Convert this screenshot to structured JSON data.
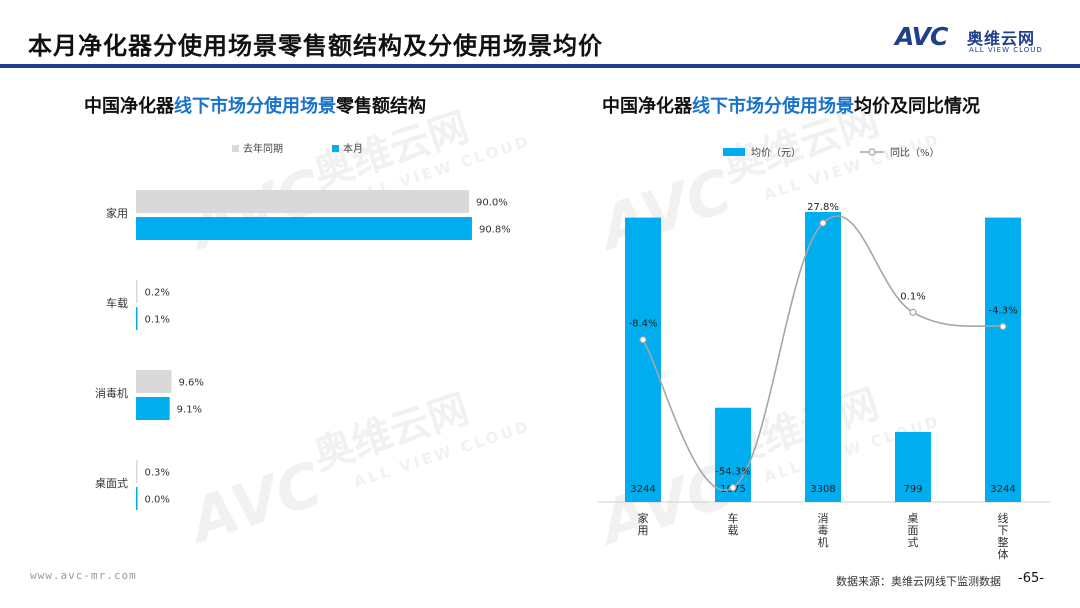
{
  "header": {
    "title": "本月净化器分使用场景零售额结构及分使用场景均价",
    "logo_mark": "AVC",
    "logo_cn": "奥维云网",
    "logo_en": "ALL VIEW CLOUD"
  },
  "left_subtitle": {
    "part1": "中国净化器",
    "highlight": "线下市场分使用场景",
    "part2": "零售额结构"
  },
  "right_subtitle": {
    "part1": "中国净化器",
    "highlight": "线下市场分使用场景",
    "part2": "均价及同比情况"
  },
  "footer": {
    "url": "www.avc-mr.com",
    "source": "数据来源：奥维云网线下监测数据",
    "page": "-65-"
  },
  "watermark": {
    "mark": "AVC",
    "cn": "奥维云网",
    "en": "ALL VIEW CLOUD"
  },
  "colors": {
    "navy": "#1e3f8c",
    "blue_bar": "#00aeef",
    "grey_bar": "#d9d9d9",
    "line": "#a6a6a6",
    "highlight": "#1a73c8"
  },
  "chart_data": [
    {
      "type": "bar",
      "orientation": "horizontal",
      "categories": [
        "家用",
        "车载",
        "消毒机",
        "桌面式"
      ],
      "series": [
        {
          "name": "去年同期",
          "values": [
            90.0,
            0.2,
            9.6,
            0.3
          ],
          "labels": [
            "90.0%",
            "0.2%",
            "9.6%",
            "0.3%"
          ],
          "color": "#d9d9d9"
        },
        {
          "name": "本月",
          "values": [
            90.8,
            0.1,
            9.1,
            0.0
          ],
          "labels": [
            "90.8%",
            "0.1%",
            "9.1%",
            "0.0%"
          ],
          "color": "#00aeef"
        }
      ],
      "legend": "top",
      "grid": false
    },
    {
      "type": "bar",
      "categories": [
        "家用",
        "车载",
        "消毒机",
        "桌面式",
        "线下整体"
      ],
      "series": [
        {
          "name": "均价（元）",
          "values": [
            3244,
            1075,
            3308,
            799,
            3244
          ],
          "labels": [
            "3244",
            "1075",
            "3308",
            "799",
            "3244"
          ],
          "color": "#00aeef"
        },
        {
          "name": "同比（%）",
          "kind": "line",
          "values": [
            -8.4,
            -54.3,
            27.8,
            0.1,
            -4.3
          ],
          "labels": [
            "-8.4%",
            "-54.3%",
            "27.8%",
            "0.1%",
            "-4.3%"
          ],
          "color": "#a6a6a6"
        }
      ],
      "legend": "top",
      "grid": false
    }
  ]
}
